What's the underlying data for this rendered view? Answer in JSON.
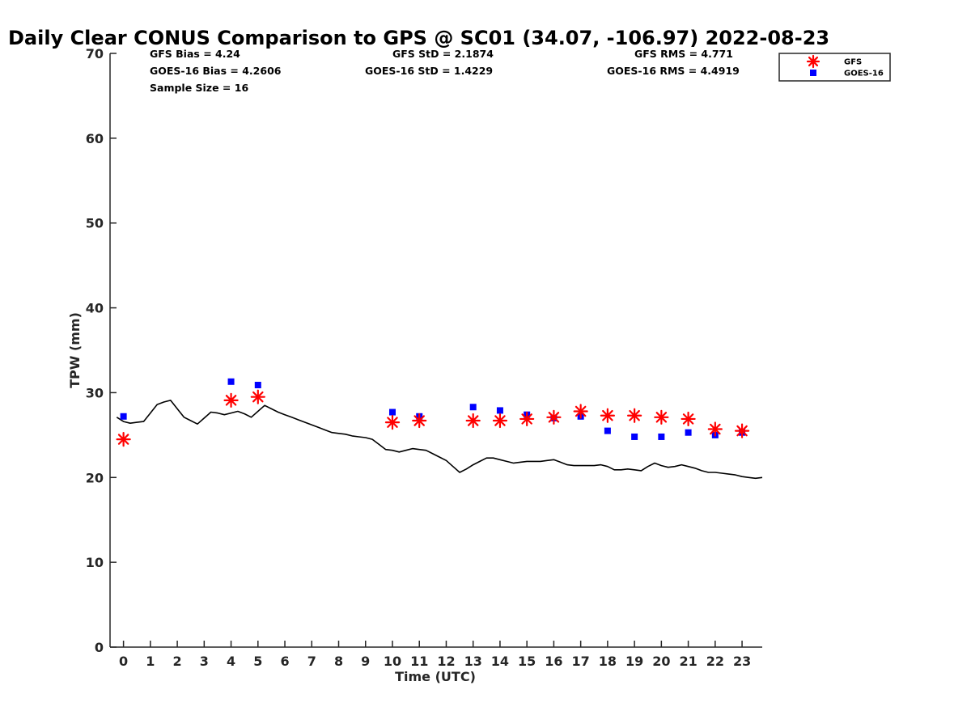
{
  "chart_data": {
    "type": "scatter",
    "title": "Daily Clear CONUS Comparison to GPS @ SC01 (34.07, -106.97) 2022-08-23",
    "xlabel": "Time (UTC)",
    "ylabel": "TPW (mm)",
    "xlim": [
      -0.5,
      23.75
    ],
    "ylim": [
      0,
      70
    ],
    "xticks": [
      0,
      1,
      2,
      3,
      4,
      5,
      6,
      7,
      8,
      9,
      10,
      11,
      12,
      13,
      14,
      15,
      16,
      17,
      18,
      19,
      20,
      21,
      22,
      23
    ],
    "yticks": [
      0,
      10,
      20,
      30,
      40,
      50,
      60,
      70
    ],
    "grid": false,
    "legend_position": "top-right",
    "stats": {
      "gfs_bias": "GFS Bias = 4.24",
      "goes_bias": "GOES-16 Bias = 4.2606",
      "sample_size": "Sample Size = 16",
      "gfs_std": "GFS StD = 2.1874",
      "goes_std": "GOES-16 StD = 1.4229",
      "gfs_rms": "GFS RMS = 4.771",
      "goes_rms": "GOES-16 RMS = 4.4919"
    },
    "series": [
      {
        "name": "GPS",
        "kind": "line",
        "color": "#000000",
        "x": [
          -0.25,
          0.0,
          0.25,
          0.5,
          0.75,
          1.0,
          1.25,
          1.5,
          1.75,
          2.0,
          2.25,
          2.5,
          2.75,
          3.0,
          3.25,
          3.5,
          3.75,
          4.0,
          4.25,
          4.5,
          4.75,
          5.0,
          5.25,
          5.5,
          5.75,
          6.0,
          6.25,
          6.5,
          6.75,
          7.0,
          7.25,
          7.5,
          7.75,
          8.0,
          8.25,
          8.5,
          8.75,
          9.0,
          9.25,
          9.5,
          9.75,
          10.0,
          10.25,
          10.5,
          10.75,
          11.0,
          11.25,
          11.5,
          11.75,
          12.0,
          12.25,
          12.5,
          12.75,
          13.0,
          13.25,
          13.5,
          13.75,
          14.0,
          14.25,
          14.5,
          14.75,
          15.0,
          15.25,
          15.5,
          15.75,
          16.0,
          16.25,
          16.5,
          16.75,
          17.0,
          17.25,
          17.5,
          17.75,
          18.0,
          18.25,
          18.5,
          18.75,
          19.0,
          19.25,
          19.5,
          19.75,
          20.0,
          20.25,
          20.5,
          20.75,
          21.0,
          21.25,
          21.5,
          21.75,
          22.0,
          22.25,
          22.5,
          22.75,
          23.0,
          23.25,
          23.5,
          23.75
        ],
        "y": [
          27.1,
          26.6,
          26.4,
          26.5,
          26.6,
          27.6,
          28.6,
          28.9,
          29.1,
          28.1,
          27.1,
          26.7,
          26.3,
          27.0,
          27.7,
          27.6,
          27.4,
          27.6,
          27.8,
          27.5,
          27.1,
          27.8,
          28.5,
          28.1,
          27.7,
          27.4,
          27.1,
          26.8,
          26.5,
          26.2,
          25.9,
          25.6,
          25.3,
          25.2,
          25.1,
          24.9,
          24.8,
          24.7,
          24.5,
          23.9,
          23.3,
          23.2,
          23.0,
          23.2,
          23.4,
          23.3,
          23.2,
          22.8,
          22.4,
          22.0,
          21.3,
          20.6,
          21.0,
          21.5,
          21.9,
          22.3,
          22.3,
          22.1,
          21.9,
          21.7,
          21.8,
          21.9,
          21.9,
          21.9,
          22.0,
          22.1,
          21.8,
          21.5,
          21.4,
          21.4,
          21.4,
          21.4,
          21.5,
          21.3,
          20.9,
          20.9,
          21.0,
          20.9,
          20.8,
          21.3,
          21.7,
          21.4,
          21.2,
          21.3,
          21.5,
          21.3,
          21.1,
          20.8,
          20.6,
          20.6,
          20.5,
          20.4,
          20.3,
          20.1,
          20.0,
          19.9,
          20.0
        ]
      },
      {
        "name": "GFS",
        "kind": "marker",
        "marker": "asterisk",
        "color": "#ff0000",
        "x": [
          0,
          4,
          5,
          10,
          11,
          13,
          14,
          15,
          16,
          17,
          18,
          19,
          20,
          21,
          22,
          23
        ],
        "y": [
          24.5,
          29.1,
          29.5,
          26.5,
          26.7,
          26.7,
          26.7,
          26.9,
          27.1,
          27.8,
          27.3,
          27.3,
          27.1,
          26.9,
          25.7,
          25.5
        ]
      },
      {
        "name": "GOES-16",
        "kind": "marker",
        "marker": "square",
        "color": "#0000ff",
        "x": [
          0,
          4,
          5,
          10,
          11,
          13,
          14,
          15,
          16,
          17,
          18,
          19,
          20,
          21,
          22,
          23
        ],
        "y": [
          27.2,
          31.3,
          30.9,
          27.7,
          27.2,
          28.3,
          27.9,
          27.4,
          27.0,
          27.2,
          25.5,
          24.8,
          24.8,
          25.3,
          25.0,
          25.3
        ]
      }
    ],
    "legend": [
      {
        "label": "GFS",
        "marker": "asterisk",
        "color": "#ff0000"
      },
      {
        "label": "GOES-16",
        "marker": "square",
        "color": "#0000ff"
      }
    ]
  }
}
